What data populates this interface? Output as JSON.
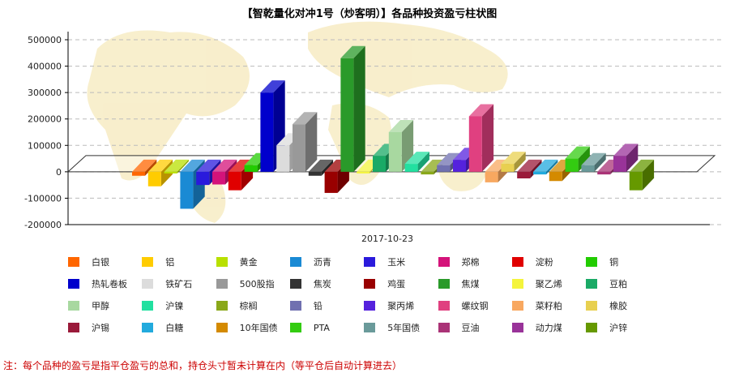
{
  "chart_data": {
    "type": "bar",
    "title": "【智乾量化对冲1号（炒客明）】各品种投资盈亏柱状图",
    "xlabel": "2017-10-23",
    "ylabel": "",
    "ylim": [
      -200000,
      500000
    ],
    "yticks": [
      "500000",
      "400000",
      "300000",
      "200000",
      "100000",
      "0",
      "-100000",
      "-200000"
    ],
    "grid": true,
    "legend": "bottom",
    "categories": [
      "2017-10-23"
    ],
    "series": [
      {
        "name": "白银",
        "values": [
          -15000
        ],
        "color": "#ff6600"
      },
      {
        "name": "铝",
        "values": [
          -55000
        ],
        "color": "#ffcc00"
      },
      {
        "name": "黄金",
        "values": [
          0
        ],
        "color": "#b8e000"
      },
      {
        "name": "沥青",
        "values": [
          -140000
        ],
        "color": "#1a8ad4"
      },
      {
        "name": "玉米",
        "values": [
          -50000
        ],
        "color": "#2a1adc"
      },
      {
        "name": "郑棉",
        "values": [
          -48000
        ],
        "color": "#d4137a"
      },
      {
        "name": "淀粉",
        "values": [
          -70000
        ],
        "color": "#e00000"
      },
      {
        "name": "铜",
        "values": [
          25000
        ],
        "color": "#22cc00"
      },
      {
        "name": "热轧卷板",
        "values": [
          300000
        ],
        "color": "#0000cc"
      },
      {
        "name": "铁矿石",
        "values": [
          100000
        ],
        "color": "#dcdcdc"
      },
      {
        "name": "500股指",
        "values": [
          180000
        ],
        "color": "#999999"
      },
      {
        "name": "焦炭",
        "values": [
          -15000
        ],
        "color": "#333333"
      },
      {
        "name": "鸡蛋",
        "values": [
          -80000
        ],
        "color": "#990000"
      },
      {
        "name": "焦煤",
        "values": [
          430000
        ],
        "color": "#2a9a2a"
      },
      {
        "name": "聚乙烯",
        "values": [
          0
        ],
        "color": "#f4f43c"
      },
      {
        "name": "豆粕",
        "values": [
          60000
        ],
        "color": "#1aaa66"
      },
      {
        "name": "甲醇",
        "values": [
          150000
        ],
        "color": "#a8d8a0"
      },
      {
        "name": "沪镍",
        "values": [
          30000
        ],
        "color": "#22e0a0"
      },
      {
        "name": "棕榈",
        "values": [
          -10000
        ],
        "color": "#8aa81a"
      },
      {
        "name": "铅",
        "values": [
          25000
        ],
        "color": "#7070b0"
      },
      {
        "name": "聚丙烯",
        "values": [
          45000
        ],
        "color": "#5522dd"
      },
      {
        "name": "螺纹钢",
        "values": [
          210000
        ],
        "color": "#e04080"
      },
      {
        "name": "菜籽粕",
        "values": [
          -40000
        ],
        "color": "#f8a860"
      },
      {
        "name": "橡胶",
        "values": [
          30000
        ],
        "color": "#e8d050"
      },
      {
        "name": "沪锡",
        "values": [
          -25000
        ],
        "color": "#9a1a3a"
      },
      {
        "name": "白糖",
        "values": [
          -10000
        ],
        "color": "#22aadd"
      },
      {
        "name": "10年国债",
        "values": [
          -35000
        ],
        "color": "#d48a00"
      },
      {
        "name": "PTA",
        "values": [
          50000
        ],
        "color": "#33cc11"
      },
      {
        "name": "5年国债",
        "values": [
          25000
        ],
        "color": "#6a9a9a"
      },
      {
        "name": "豆油",
        "values": [
          -10000
        ],
        "color": "#aa3377"
      },
      {
        "name": "动力煤",
        "values": [
          60000
        ],
        "color": "#993399"
      },
      {
        "name": "沪锌",
        "values": [
          -70000
        ],
        "color": "#669900"
      }
    ]
  },
  "footnote": "注：每个品种的盈亏是指平仓盈亏的总和，持仓头寸暂未计算在内（等平仓后自动计算进去）"
}
